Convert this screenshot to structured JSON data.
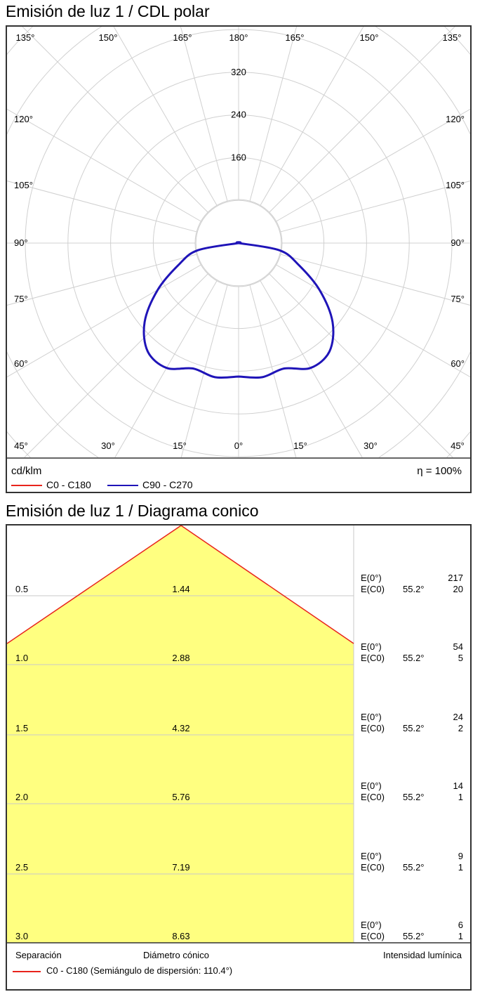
{
  "polar": {
    "title": "Emisión de luz 1 / CDL polar",
    "unit": "cd/klm",
    "efficiency": "η = 100%",
    "radial_ticks": [
      "160",
      "240",
      "320"
    ],
    "angle_labels_top": [
      "135°",
      "150°",
      "165°",
      "180°",
      "165°",
      "150°",
      "135°"
    ],
    "angle_labels_side": [
      "120°",
      "105°",
      "90°",
      "75°",
      "60°"
    ],
    "angle_labels_bottom": [
      "45°",
      "30°",
      "15°",
      "0°",
      "15°",
      "30°",
      "45°"
    ],
    "legend": [
      {
        "label": "C0 - C180",
        "color": "#e8241c"
      },
      {
        "label": "C90 - C270",
        "color": "#1f14b8"
      }
    ]
  },
  "cone": {
    "title": "Emisión de luz 1 / Diagrama conico",
    "footer": {
      "separation": "Separación",
      "diameter": "Diámetro cónico",
      "intensity": "Intensidad lumínica",
      "legend": "C0 - C180 (Semiángulo de dispersión: 110.4°)"
    },
    "rows": [
      {
        "distance": "0.5",
        "diameter": "1.44",
        "e0_label": "E(0°)",
        "e0": "217",
        "ec_label": "E(C0)",
        "angle": "55.2°",
        "ec": "20"
      },
      {
        "distance": "1.0",
        "diameter": "2.88",
        "e0_label": "E(0°)",
        "e0": "54",
        "ec_label": "E(C0)",
        "angle": "55.2°",
        "ec": "5"
      },
      {
        "distance": "1.5",
        "diameter": "4.32",
        "e0_label": "E(0°)",
        "e0": "24",
        "ec_label": "E(C0)",
        "angle": "55.2°",
        "ec": "2"
      },
      {
        "distance": "2.0",
        "diameter": "5.76",
        "e0_label": "E(0°)",
        "e0": "14",
        "ec_label": "E(C0)",
        "angle": "55.2°",
        "ec": "1"
      },
      {
        "distance": "2.5",
        "diameter": "7.19",
        "e0_label": "E(0°)",
        "e0": "9",
        "ec_label": "E(C0)",
        "angle": "55.2°",
        "ec": "1"
      },
      {
        "distance": "3.0",
        "diameter": "8.63",
        "e0_label": "E(0°)",
        "e0": "6",
        "ec_label": "E(C0)",
        "angle": "55.2°",
        "ec": "1"
      }
    ],
    "colors": {
      "fill": "#ffff80",
      "edge": "#e8241c"
    }
  },
  "chart_data": [
    {
      "type": "polar",
      "title": "Emisión de luz 1 / CDL polar",
      "unit": "cd/klm",
      "radial_ticks": [
        160,
        240,
        320
      ],
      "series": [
        {
          "name": "C0 - C180",
          "angles_deg": [],
          "values": []
        },
        {
          "name": "C90 - C270",
          "angles_deg": [
            0,
            10,
            20,
            30,
            40,
            50,
            60,
            70,
            80,
            90
          ],
          "values": [
            250,
            255,
            250,
            270,
            265,
            230,
            175,
            120,
            78,
            0
          ]
        }
      ]
    },
    {
      "type": "table",
      "title": "Emisión de luz 1 / Diagrama conico",
      "columns": [
        "Separación",
        "Diámetro cónico",
        "E(0°)",
        "E(C0) 55.2°"
      ],
      "rows": [
        [
          0.5,
          1.44,
          217,
          20
        ],
        [
          1.0,
          2.88,
          54,
          5
        ],
        [
          1.5,
          4.32,
          24,
          2
        ],
        [
          2.0,
          5.76,
          14,
          1
        ],
        [
          2.5,
          7.19,
          9,
          1
        ],
        [
          3.0,
          8.63,
          6,
          1
        ]
      ],
      "half_angle_deg": 110.4
    }
  ]
}
